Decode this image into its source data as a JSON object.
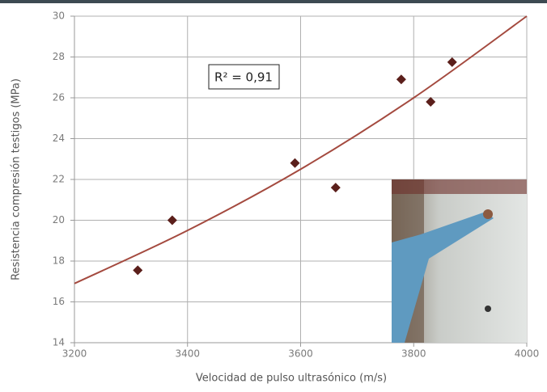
{
  "chart_data": {
    "type": "scatter",
    "x_label": "Velocidad de pulso ultrasónico (m/s)",
    "y_label": "Resistencia compresión testigos (MPa)",
    "annotation": "R² = 0,91",
    "xlim": [
      3200,
      4000
    ],
    "xticks": [
      3200,
      3400,
      3600,
      3800,
      4000
    ],
    "ylim": [
      14,
      30
    ],
    "yticks": [
      14,
      16,
      18,
      20,
      22,
      24,
      26,
      28,
      30
    ],
    "grid": true,
    "series": [
      {
        "color": "#5b1f1b",
        "x": [
          3312,
          3373,
          3590,
          3662,
          3778,
          3830,
          3868
        ],
        "values": [
          17.55,
          20.0,
          22.8,
          21.6,
          26.9,
          25.8,
          27.75
        ]
      }
    ],
    "trendline": {
      "color": "#a44a3f",
      "x": [
        3200,
        3400,
        3600,
        3800,
        4000
      ],
      "values": [
        16.9,
        19.5,
        22.5,
        26.0,
        30.0
      ]
    }
  }
}
